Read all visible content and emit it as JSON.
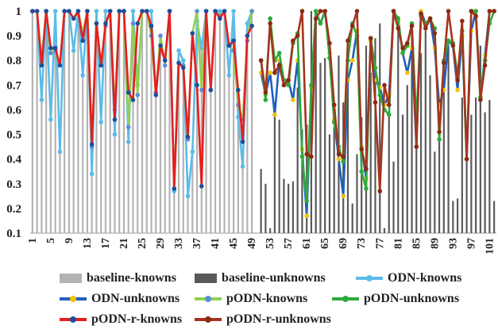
{
  "chart_data": {
    "type": "bar+line",
    "xlabel": "",
    "ylabel": "",
    "ylim": [
      0.1,
      1.0
    ],
    "yticks": [
      "0.1",
      "0.2",
      "0.3",
      "0.4",
      "0.5",
      "0.6",
      "0.7",
      "0.8",
      "0.9",
      "1"
    ],
    "xticks": [
      "1",
      "5",
      "9",
      "13",
      "17",
      "21",
      "25",
      "29",
      "33",
      "37",
      "41",
      "45",
      "49",
      "53",
      "57",
      "61",
      "65",
      "69",
      "73",
      "77",
      "81",
      "85",
      "89",
      "93",
      "97",
      "101"
    ],
    "grid": false,
    "legend_position": "bottom",
    "x": [
      1,
      2,
      3,
      4,
      5,
      6,
      7,
      8,
      9,
      10,
      11,
      12,
      13,
      14,
      15,
      16,
      17,
      18,
      19,
      20,
      21,
      22,
      23,
      24,
      25,
      26,
      27,
      28,
      29,
      30,
      31,
      32,
      33,
      34,
      35,
      36,
      37,
      38,
      39,
      40,
      41,
      42,
      43,
      44,
      45,
      46,
      47,
      48,
      49,
      50,
      51,
      52,
      53,
      54,
      55,
      56,
      57,
      58,
      59,
      60,
      61,
      62,
      63,
      64,
      65,
      66,
      67,
      68,
      69,
      70,
      71,
      72,
      73,
      74,
      75,
      76,
      77,
      78,
      79,
      80,
      81,
      82,
      83,
      84,
      85,
      86,
      87,
      88,
      89,
      90,
      91,
      92,
      93,
      94,
      95,
      96,
      97,
      98,
      99,
      100,
      101,
      102
    ],
    "series": [
      {
        "name": "baseline-knowns",
        "type": "bar",
        "color": "#b3b3b3",
        "values": [
          1,
          1,
          0.64,
          1,
          0.56,
          1,
          0.43,
          1,
          1,
          0.84,
          1,
          0.74,
          1,
          0.34,
          1,
          0.55,
          1,
          1,
          0.5,
          1,
          1,
          0.47,
          1,
          0.7,
          1,
          1,
          1,
          0.66,
          0.85,
          0.8,
          1,
          0.27,
          0.84,
          0.8,
          0.25,
          0.43,
          0.96,
          0.85,
          1,
          0.68,
          1,
          1,
          1,
          0.74,
          1,
          0.57,
          0.37,
          0.95,
          1,
          null,
          null,
          null,
          null,
          null,
          null,
          null,
          null,
          null,
          null,
          null,
          null,
          null,
          null,
          null,
          null,
          null,
          null,
          null,
          null,
          null,
          null,
          null,
          null,
          null,
          null,
          null,
          null,
          null,
          null,
          null,
          null,
          null,
          null,
          null,
          null,
          null,
          null,
          null,
          null,
          null,
          null,
          null,
          null,
          null,
          null,
          null,
          null,
          null,
          null,
          null,
          null,
          null
        ]
      },
      {
        "name": "baseline-unknowns",
        "type": "bar",
        "color": "#595959",
        "values": [
          null,
          null,
          null,
          null,
          null,
          null,
          null,
          null,
          null,
          null,
          null,
          null,
          null,
          null,
          null,
          null,
          null,
          null,
          null,
          null,
          null,
          null,
          null,
          null,
          null,
          null,
          null,
          null,
          null,
          null,
          null,
          null,
          null,
          null,
          null,
          null,
          null,
          null,
          null,
          null,
          null,
          null,
          null,
          null,
          null,
          null,
          null,
          null,
          null,
          null,
          0.36,
          0.3,
          0.12,
          0.63,
          0.56,
          0.32,
          0.3,
          0.31,
          0.69,
          0.52,
          0.54,
          1,
          1,
          0.79,
          0.81,
          0.5,
          0.53,
          0.82,
          0.63,
          0.74,
          0.22,
          0.42,
          0.57,
          0.86,
          0.75,
          0.89,
          0.95,
          0.12,
          0.59,
          0.39,
          0.98,
          0.58,
          0.7,
          0.94,
          0.62,
          0.83,
          0.92,
          0.74,
          0.43,
          0.5,
          0.79,
          0.86,
          0.23,
          0.24,
          0.65,
          0.52,
          0.58,
          0.65,
          0.86,
          0.59,
          0.64,
          0.23
        ]
      },
      {
        "name": "ODN-knowns",
        "type": "line",
        "color": "#5bbbe8",
        "values": [
          1,
          1,
          0.64,
          1,
          0.56,
          1,
          0.43,
          1,
          1,
          0.84,
          1,
          0.74,
          1,
          0.34,
          1,
          0.55,
          1,
          1,
          0.5,
          1,
          1,
          0.47,
          1,
          0.7,
          1,
          1,
          1,
          0.66,
          0.85,
          0.8,
          1,
          0.27,
          0.84,
          0.8,
          0.25,
          0.43,
          0.96,
          0.85,
          1,
          0.68,
          1,
          1,
          1,
          0.74,
          1,
          0.57,
          0.37,
          0.95,
          1,
          null,
          null,
          null,
          null,
          null,
          null,
          null,
          null,
          null,
          null,
          null,
          null,
          null,
          null,
          null,
          null,
          null,
          null,
          null,
          null,
          null,
          null,
          null,
          null,
          null,
          null,
          null,
          null,
          null,
          null,
          null,
          null,
          null,
          null,
          null,
          null,
          null,
          null,
          null,
          null,
          null,
          null,
          null,
          null,
          null,
          null,
          null,
          null,
          null,
          null,
          null,
          null,
          null
        ]
      },
      {
        "name": "ODN-unknowns",
        "type": "line",
        "color": "#1f5fbf",
        "values": [
          null,
          null,
          null,
          null,
          null,
          null,
          null,
          null,
          null,
          null,
          null,
          null,
          null,
          null,
          null,
          null,
          null,
          null,
          null,
          null,
          null,
          null,
          null,
          null,
          null,
          null,
          null,
          null,
          null,
          null,
          null,
          null,
          null,
          null,
          null,
          null,
          null,
          null,
          null,
          null,
          null,
          null,
          null,
          null,
          null,
          null,
          null,
          null,
          null,
          null,
          0.75,
          0.66,
          0.75,
          0.58,
          0.8,
          0.72,
          0.72,
          0.64,
          0.8,
          0.44,
          0.17,
          0.69,
          1,
          0.95,
          1,
          0.83,
          0.56,
          0.4,
          0.25,
          0.72,
          0.8,
          0.92,
          0.45,
          0.32,
          0.88,
          0.72,
          0.69,
          0.62,
          0.66,
          1,
          0.96,
          0.83,
          0.75,
          0.85,
          0.45,
          1,
          0.95,
          0.97,
          0.85,
          0.62,
          0.68,
          0.88,
          0.86,
          0.68,
          0.9,
          0.4,
          0.92,
          1,
          0.65,
          0.82,
          1,
          1
        ]
      },
      {
        "name": "pODN-knowns",
        "type": "line",
        "color": "#92d050",
        "values": [
          1,
          1,
          0.8,
          1,
          0.83,
          0.84,
          0.78,
          1,
          1,
          0.97,
          1,
          0.91,
          1,
          0.45,
          0.95,
          0.78,
          0.94,
          1,
          0.6,
          1,
          1,
          0.53,
          0.95,
          0.66,
          1,
          1,
          0.9,
          0.67,
          0.9,
          0.78,
          1,
          0.28,
          0.79,
          0.78,
          0.48,
          0.91,
          1,
          0.68,
          1,
          0.68,
          1,
          0.98,
          1,
          0.86,
          0.84,
          0.62,
          0.56,
          0.88,
          1,
          null,
          null,
          null,
          null,
          null,
          null,
          null,
          null,
          null,
          null,
          null,
          null,
          null,
          null,
          null,
          null,
          null,
          null,
          null,
          null,
          null,
          null,
          null,
          null,
          null,
          null,
          null,
          null,
          null,
          null,
          null,
          null,
          null,
          null,
          null,
          null,
          null,
          null,
          null,
          null,
          null,
          null,
          null,
          null,
          null,
          null,
          null,
          null,
          null,
          null,
          null,
          null,
          null
        ]
      },
      {
        "name": "pODN-unknowns",
        "type": "line",
        "color": "#2eaa3c",
        "values": [
          null,
          null,
          null,
          null,
          null,
          null,
          null,
          null,
          null,
          null,
          null,
          null,
          null,
          null,
          null,
          null,
          null,
          null,
          null,
          null,
          null,
          null,
          null,
          null,
          null,
          null,
          null,
          null,
          null,
          null,
          null,
          null,
          null,
          null,
          null,
          null,
          null,
          null,
          null,
          null,
          null,
          null,
          null,
          null,
          null,
          null,
          null,
          null,
          null,
          null,
          0.8,
          0.64,
          0.97,
          0.8,
          0.83,
          0.72,
          0.7,
          0.87,
          0.91,
          0.41,
          0.23,
          0.7,
          1,
          0.95,
          1,
          0.81,
          0.55,
          0.45,
          0.39,
          0.8,
          0.95,
          0.9,
          0.35,
          0.28,
          0.89,
          0.77,
          0.66,
          0.6,
          0.58,
          1,
          0.97,
          0.83,
          0.86,
          0.95,
          0.55,
          0.98,
          0.95,
          0.97,
          0.93,
          0.48,
          0.8,
          0.88,
          0.87,
          0.74,
          0.92,
          0.4,
          1,
          1,
          0.65,
          0.8,
          0.95,
          1
        ]
      },
      {
        "name": "pODN-r-knowns",
        "type": "line",
        "color": "#e61e1e",
        "values": [
          1,
          1,
          0.78,
          1,
          0.85,
          0.85,
          0.78,
          1,
          1,
          0.97,
          1,
          0.88,
          1,
          0.46,
          0.95,
          0.78,
          0.95,
          1,
          0.56,
          1,
          1,
          0.67,
          0.64,
          0.95,
          1,
          1,
          0.94,
          0.66,
          0.86,
          0.8,
          1,
          0.28,
          0.79,
          0.77,
          0.49,
          0.91,
          0.7,
          0.29,
          1,
          0.68,
          1,
          0.97,
          1,
          0.86,
          0.88,
          0.68,
          0.47,
          0.9,
          0.94,
          null,
          null,
          null,
          null,
          null,
          null,
          null,
          null,
          null,
          null,
          null,
          null,
          null,
          null,
          null,
          null,
          null,
          null,
          null,
          null,
          null,
          null,
          null,
          null,
          null,
          null,
          null,
          null,
          null,
          null,
          null,
          null,
          null,
          null,
          null,
          null,
          null,
          null,
          null,
          null,
          null,
          null,
          null,
          null,
          null,
          null,
          null,
          null,
          null,
          null,
          null,
          null,
          null
        ]
      },
      {
        "name": "pODN-r-unknowns",
        "type": "line",
        "color": "#a5341e",
        "values": [
          null,
          null,
          null,
          null,
          null,
          null,
          null,
          null,
          null,
          null,
          null,
          null,
          null,
          null,
          null,
          null,
          null,
          null,
          null,
          null,
          null,
          null,
          null,
          null,
          null,
          null,
          null,
          null,
          null,
          null,
          null,
          null,
          null,
          null,
          null,
          null,
          null,
          null,
          null,
          null,
          null,
          null,
          null,
          null,
          null,
          null,
          null,
          null,
          null,
          null,
          0.8,
          0.67,
          0.95,
          0.75,
          0.78,
          0.7,
          0.72,
          0.88,
          0.9,
          1,
          0.42,
          0.41,
          0.97,
          1,
          1,
          0.87,
          0.62,
          0.42,
          0.41,
          0.88,
          0.94,
          1,
          0.44,
          0.36,
          0.89,
          0.63,
          0.27,
          0.7,
          0.62,
          1,
          0.93,
          0.85,
          0.87,
          0.94,
          0.45,
          0.99,
          0.93,
          0.97,
          0.91,
          0.51,
          0.79,
          1,
          0.86,
          0.72,
          0.96,
          0.4,
          1,
          0.98,
          0.64,
          0.78,
          1,
          1
        ]
      }
    ]
  },
  "legend": [
    {
      "label": "baseline-knowns",
      "kind": "bar",
      "color": "#b3b3b3"
    },
    {
      "label": "baseline-unknowns",
      "kind": "bar",
      "color": "#595959"
    },
    {
      "label": "ODN-knowns",
      "kind": "line",
      "color": "#5bbbe8",
      "marker": "#5bbbe8"
    },
    {
      "label": "ODN-unknowns",
      "kind": "line",
      "color": "#1f5fbf",
      "marker": "#f2c200"
    },
    {
      "label": "pODN-knowns",
      "kind": "line",
      "color": "#92d050",
      "marker": "#5b8fd6"
    },
    {
      "label": "pODN-unknowns",
      "kind": "line",
      "color": "#2eaa3c",
      "marker": "#2eaa3c"
    },
    {
      "label": "pODN-r-knowns",
      "kind": "line",
      "color": "#e61e1e",
      "marker": "#1f4e9b"
    },
    {
      "label": "pODN-r-unknowns",
      "kind": "line",
      "color": "#a5341e",
      "marker": "#8b2a12"
    }
  ],
  "marker_colors": {
    "ODN-knowns": "#5bbbe8",
    "ODN-unknowns": "#f2c200",
    "pODN-knowns": "#5b8fd6",
    "pODN-unknowns": "#2eaa3c",
    "pODN-r-knowns": "#1f4e9b",
    "pODN-r-unknowns": "#8b2a12"
  }
}
